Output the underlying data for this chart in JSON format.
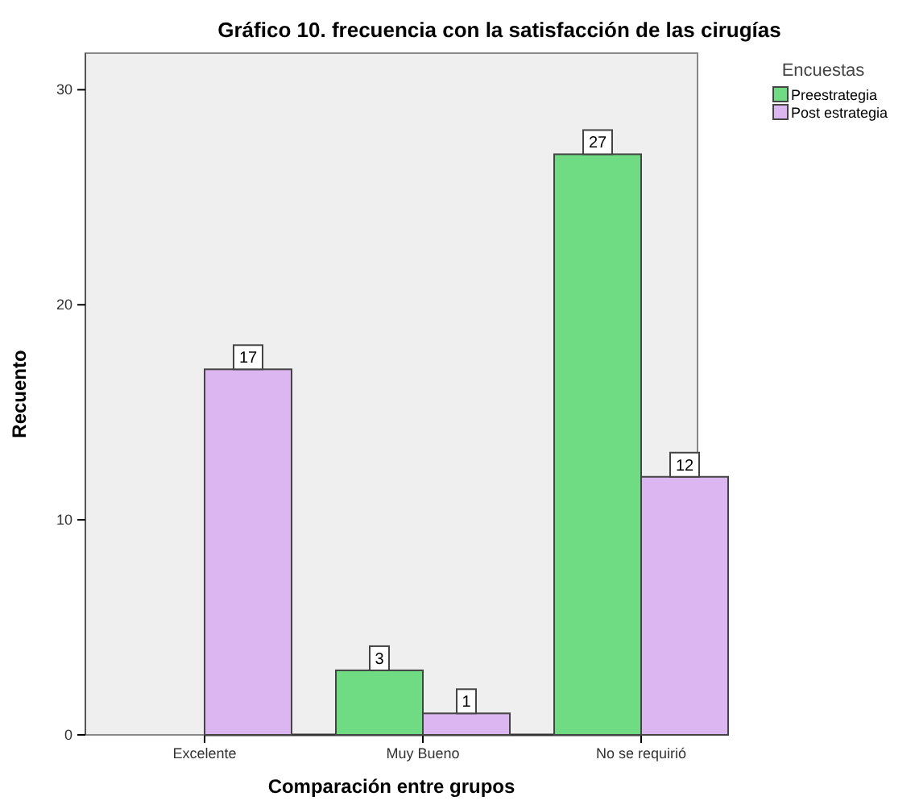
{
  "chart_data": {
    "type": "bar",
    "title": "Gráfico 10. frecuencia con la satisfacción  de las cirugías",
    "xlabel": "Comparación entre grupos",
    "ylabel": "Recuento",
    "legend_title": "Encuestas",
    "categories": [
      "Excelente",
      "Muy Bueno",
      "No se requirió"
    ],
    "series": [
      {
        "name": "Preestrategia",
        "color": "#6fdc84",
        "values": [
          null,
          3,
          27
        ]
      },
      {
        "name": "Post estrategia",
        "color": "#dcb6f0",
        "values": [
          17,
          1,
          12
        ]
      }
    ],
    "ylim": [
      0,
      31.7
    ],
    "yticks": [
      0,
      10,
      20,
      30
    ],
    "data_labels": true,
    "legend": "top right"
  }
}
